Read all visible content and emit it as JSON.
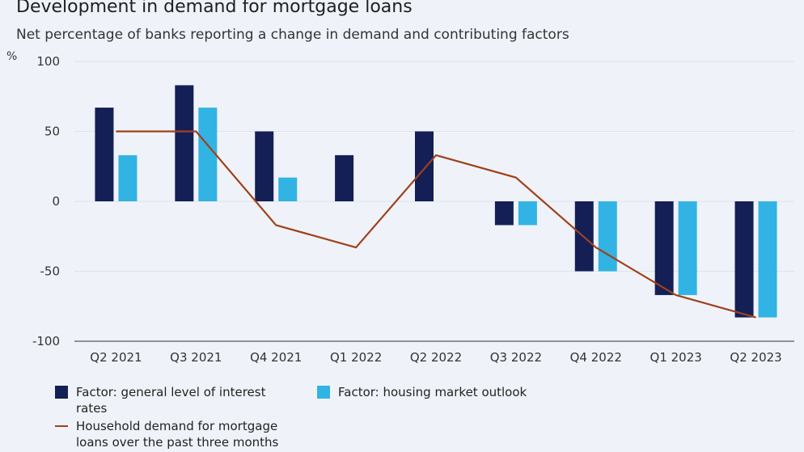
{
  "title": "Development in demand for mortgage loans",
  "subtitle": "Net percentage of banks reporting a change in demand and contributing factors",
  "y_unit": "%",
  "chart_data": {
    "type": "bar",
    "categories": [
      "Q2 2021",
      "Q3 2021",
      "Q4 2021",
      "Q1 2022",
      "Q2 2022",
      "Q3 2022",
      "Q4 2022",
      "Q1 2023",
      "Q2 2023"
    ],
    "ylim": [
      -100,
      100
    ],
    "yticks": [
      100,
      50,
      0,
      -50,
      -100
    ],
    "grid": true,
    "legend_position": "bottom",
    "series": [
      {
        "name": "Factor: general level of interest rates",
        "type": "bar",
        "color": "#141f56",
        "values": [
          67,
          83,
          50,
          33,
          50,
          -17,
          -50,
          -67,
          -83
        ]
      },
      {
        "name": "Factor: housing market outlook",
        "type": "bar",
        "color": "#31b4e3",
        "values": [
          33,
          67,
          17,
          0,
          0,
          -17,
          -50,
          -67,
          -83
        ]
      },
      {
        "name": "Household demand for mortgage loans over the past three months",
        "type": "line",
        "color": "#a0401a",
        "values": [
          50,
          50,
          -17,
          -33,
          33,
          17,
          -33,
          -67,
          -83
        ]
      }
    ]
  }
}
